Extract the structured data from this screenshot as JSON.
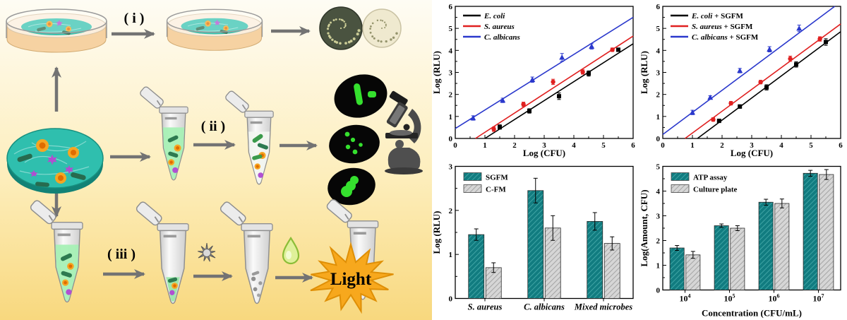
{
  "diagram": {
    "steps": [
      {
        "label": "( i )"
      },
      {
        "label": "( ii )"
      },
      {
        "label": "( iii )"
      }
    ],
    "light_label": "Light",
    "icons": [
      "petri-dish",
      "agar-plates",
      "membrane-disc",
      "microtube",
      "fluorescence-micrographs",
      "microscope",
      "lysis-burst",
      "reagent-drop",
      "light-burst"
    ],
    "colors": {
      "background_top": "#fefcf4",
      "background_bottom": "#f8d87e",
      "membrane_teal": "#2fbfae",
      "tube_liquid_green": "#a7f0b5",
      "fluorescent_green": "#35e02e",
      "starburst_orange": "#f7a81d",
      "arrow_gray": "#737373"
    }
  },
  "chart_data": [
    {
      "type": "scatter",
      "title": "",
      "xlabel": "Log (CFU)",
      "ylabel": "Log (RLU)",
      "xlim": [
        0,
        6
      ],
      "ylim": [
        0,
        6
      ],
      "xticks": [
        0,
        1,
        2,
        3,
        4,
        5,
        6
      ],
      "yticks": [
        0,
        1,
        2,
        3,
        4,
        5,
        6
      ],
      "grid": false,
      "legend_position": "top-left",
      "series": [
        {
          "name": "E. coli",
          "suffix": "",
          "color": "#000000",
          "marker": "square",
          "x": [
            1.5,
            2.5,
            3.5,
            4.5,
            5.5
          ],
          "y": [
            0.52,
            1.25,
            1.92,
            2.95,
            4.03
          ],
          "yerr": [
            0.1,
            0.1,
            0.15,
            0.12,
            0.08
          ],
          "fit_line": [
            [
              1.0,
              0
            ],
            [
              6.0,
              4.3
            ]
          ]
        },
        {
          "name": "S. aureus",
          "suffix": "",
          "color": "#e02020",
          "marker": "circle",
          "x": [
            1.3,
            2.3,
            3.3,
            4.3,
            5.3
          ],
          "y": [
            0.42,
            1.55,
            2.57,
            3.02,
            4.03
          ],
          "yerr": [
            0.1,
            0.1,
            0.12,
            0.1,
            0.08
          ],
          "fit_line": [
            [
              0.68,
              0
            ],
            [
              6.0,
              4.65
            ]
          ]
        },
        {
          "name": "C. albicans",
          "suffix": "",
          "color": "#2a38cc",
          "marker": "triangle",
          "x": [
            0.6,
            1.6,
            2.6,
            3.6,
            4.6
          ],
          "y": [
            0.93,
            1.73,
            2.67,
            3.68,
            4.18
          ],
          "yerr": [
            0.1,
            0.1,
            0.12,
            0.18,
            0.12
          ],
          "fit_line": [
            [
              0,
              0.45
            ],
            [
              6.0,
              5.5
            ]
          ]
        }
      ]
    },
    {
      "type": "scatter",
      "title": "",
      "xlabel": "Log (CFU)",
      "ylabel": "Log (RLU)",
      "xlim": [
        0,
        6
      ],
      "ylim": [
        0,
        6
      ],
      "xticks": [
        0,
        1,
        2,
        3,
        4,
        5,
        6
      ],
      "yticks": [
        0,
        1,
        2,
        3,
        4,
        5,
        6
      ],
      "grid": false,
      "legend_position": "top-left",
      "series": [
        {
          "name": "E. coli",
          "suffix": " + SGFM",
          "color": "#000000",
          "marker": "square",
          "x": [
            1.9,
            2.6,
            3.5,
            4.5,
            5.5
          ],
          "y": [
            0.8,
            1.45,
            2.32,
            3.36,
            4.38
          ],
          "yerr": [
            0.08,
            0.08,
            0.12,
            0.12,
            0.15
          ],
          "fit_line": [
            [
              1.17,
              0
            ],
            [
              6.0,
              4.85
            ]
          ]
        },
        {
          "name": "S. aureus",
          "suffix": " + SGFM",
          "color": "#e02020",
          "marker": "circle",
          "x": [
            1.7,
            2.3,
            3.3,
            4.3,
            5.3
          ],
          "y": [
            0.86,
            1.6,
            2.56,
            3.62,
            4.52
          ],
          "yerr": [
            0.08,
            0.08,
            0.08,
            0.12,
            0.1
          ],
          "fit_line": [
            [
              0.75,
              0
            ],
            [
              6.0,
              5.2
            ]
          ]
        },
        {
          "name": "C. albicans",
          "suffix": " + SGFM",
          "color": "#2a38cc",
          "marker": "triangle",
          "x": [
            1.0,
            1.6,
            2.6,
            3.6,
            4.6
          ],
          "y": [
            1.18,
            1.86,
            3.08,
            4.05,
            5.0
          ],
          "yerr": [
            0.1,
            0.08,
            0.1,
            0.12,
            0.15
          ],
          "fit_line": [
            [
              0,
              0.18
            ],
            [
              5.8,
              6.0
            ]
          ]
        }
      ]
    },
    {
      "type": "bar",
      "title": "",
      "categories": [
        "S. aureus",
        "C. albicans",
        "Mixed microbes"
      ],
      "categories_italic": true,
      "xlabel": "",
      "ylabel": "Log (RLU)",
      "ylim": [
        0,
        3
      ],
      "yticks": [
        0,
        1,
        2,
        3
      ],
      "grid": false,
      "legend_position": "top-left",
      "series": [
        {
          "name": "SGFM",
          "color": "#117c80",
          "hatch": "#45a9a9",
          "values": [
            1.45,
            2.45,
            1.75
          ],
          "errors": [
            0.13,
            0.28,
            0.2
          ]
        },
        {
          "name": "C-FM",
          "color": "#d6d6d6",
          "hatch": "#9f9f9f",
          "values": [
            0.7,
            1.6,
            1.25
          ],
          "errors": [
            0.11,
            0.28,
            0.15
          ]
        }
      ]
    },
    {
      "type": "bar",
      "title": "",
      "categories": [
        "10^4",
        "10^5",
        "10^6",
        "10^7"
      ],
      "categories_italic": false,
      "xlabel": "Concentration (CFU/mL)",
      "ylabel": "Log(Amount, CFU)",
      "ylim": [
        0,
        5
      ],
      "yticks": [
        0,
        1,
        2,
        3,
        4,
        5
      ],
      "grid": false,
      "legend_position": "top-left",
      "series": [
        {
          "name": "ATP assay",
          "color": "#117c80",
          "hatch": "#45a9a9",
          "values": [
            1.7,
            2.6,
            3.55,
            4.72
          ],
          "errors": [
            0.1,
            0.07,
            0.12,
            0.12
          ]
        },
        {
          "name": "Culture plate",
          "color": "#d6d6d6",
          "hatch": "#9f9f9f",
          "values": [
            1.42,
            2.5,
            3.5,
            4.67
          ],
          "errors": [
            0.14,
            0.1,
            0.18,
            0.2
          ]
        }
      ]
    }
  ]
}
